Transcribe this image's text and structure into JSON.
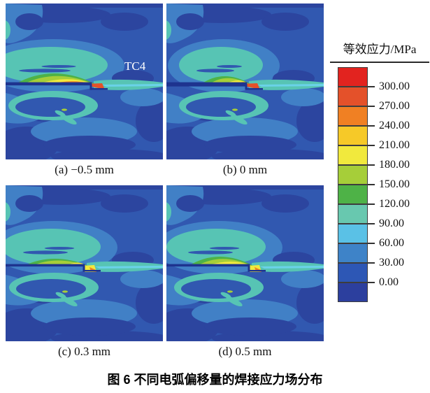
{
  "figure": {
    "caption": "图 6  不同电弧偏移量的焊接应力场分布",
    "legend": {
      "title": "等效应力/MPa",
      "tick_labels": [
        "300.00",
        "270.00",
        "240.00",
        "210.00",
        "180.00",
        "150.00",
        "120.00",
        "90.00",
        "60.00",
        "30.00",
        "0.00"
      ],
      "segment_colors": [
        "#e2231f",
        "#e4512a",
        "#f08023",
        "#f6c928",
        "#f1e93d",
        "#a6ce39",
        "#4eb247",
        "#68c8af",
        "#5ac1e6",
        "#3e83c8",
        "#2d57b5",
        "#2c3f9e"
      ]
    },
    "panels": [
      {
        "id": "a",
        "label": "(a) −0.5 mm",
        "annotation": "TC4",
        "art": {
          "step": 122,
          "lens0": 14,
          "peak": 15,
          "yellow0": 46,
          "orange": true,
          "red": true,
          "notch": false,
          "barH": 4.5
        }
      },
      {
        "id": "b",
        "label": "(b) 0 mm",
        "annotation": "",
        "art": {
          "step": 114,
          "lens0": 50,
          "peak": 11,
          "yellow0": 84,
          "orange": true,
          "red": true,
          "notch": false,
          "barH": 6
        }
      },
      {
        "id": "c",
        "label": "(c) 0.3 mm",
        "annotation": "",
        "art": {
          "step": 112,
          "lens0": 26,
          "peak": 10,
          "yellow0": 86,
          "orange": false,
          "red": false,
          "notch": true,
          "barH": 3.5
        }
      },
      {
        "id": "d",
        "label": "(d) 0.5 mm",
        "annotation": "",
        "art": {
          "step": 118,
          "lens0": 32,
          "peak": 13,
          "yellow0": 58,
          "orange": false,
          "red": false,
          "notch": true,
          "barH": 3.5
        }
      }
    ],
    "palette": {
      "base": "#3158b0",
      "light": "#4180c6",
      "navy": "#2c459f",
      "teal": "#57c4b4",
      "cyan": "#6ad2e8",
      "green": "#4eb247",
      "ygreen": "#a6ce39",
      "yellow": "#f1e93d",
      "orange": "#f08023",
      "redorange": "#e4512a",
      "weld": "#1e338f"
    }
  },
  "chart_data": {
    "type": "heatmap",
    "title": "不同电弧偏移量的焊接应力场分布",
    "legend_title": "等效应力/MPa",
    "scale": {
      "min": 0,
      "max": 300,
      "step": 30,
      "units": "MPa"
    },
    "panels": [
      {
        "label": "(a) −0.5 mm",
        "arc_offset_mm": -0.5
      },
      {
        "label": "(b) 0 mm",
        "arc_offset_mm": 0
      },
      {
        "label": "(c) 0.3 mm",
        "arc_offset_mm": 0.3
      },
      {
        "label": "(d) 0.5 mm",
        "arc_offset_mm": 0.5
      }
    ],
    "material_annotation": "TC4"
  }
}
